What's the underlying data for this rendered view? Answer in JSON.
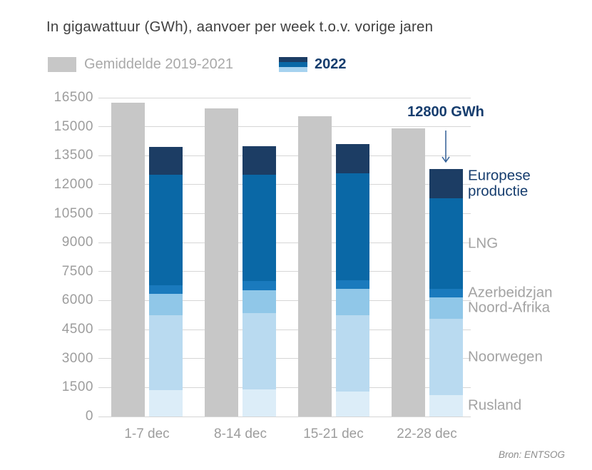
{
  "title": "In gigawattuur (GWh), aanvoer per week t.o.v. vorige jaren",
  "legend": {
    "average_label": "Gemiddelde 2019-2021",
    "year_label": "2022",
    "year_swatch_colors": [
      "#1c3d64",
      "#0a68a6",
      "#a6d2ef"
    ]
  },
  "annotation": {
    "text": "12800 GWh"
  },
  "source": "Bron: ENTSOG",
  "colors": {
    "navy": "#1c3d64",
    "navy_text": "#163d6e",
    "average_gray": "#c7c7c7",
    "grid_gray": "#d6d6d6",
    "axis_text_gray": "#9d9d9d",
    "series_label_gray": "#a3a3a3",
    "title_gray": "#414141",
    "source_gray": "#8c8c8c",
    "arrow_blue": "#315f96"
  },
  "chart_data": {
    "type": "bar",
    "stacked": true,
    "unit": "GWh",
    "title": "In gigawattuur (GWh), aanvoer per week t.o.v. vorige jaren",
    "categories": [
      "1-7 dec",
      "8-14 dec",
      "15-21 dec",
      "22-28 dec"
    ],
    "average_series": {
      "name": "Gemiddelde 2019-2021",
      "values": [
        16250,
        15950,
        15550,
        14900
      ],
      "color": "#c7c7c7"
    },
    "series": [
      {
        "name": "Rusland",
        "values": [
          1350,
          1400,
          1300,
          1100
        ],
        "color": "#dcedf8"
      },
      {
        "name": "Noorwegen",
        "values": [
          3900,
          3950,
          3950,
          3950
        ],
        "color": "#b9daf0"
      },
      {
        "name": "Noord-Afrika",
        "values": [
          1100,
          1200,
          1350,
          1100
        ],
        "color": "#90c7e8"
      },
      {
        "name": "Azerbeidzjan",
        "values": [
          450,
          450,
          450,
          450
        ],
        "color": "#1a7abd"
      },
      {
        "name": "LNG",
        "values": [
          5700,
          5500,
          5550,
          4700
        ],
        "color": "#0a68a6"
      },
      {
        "name": "Europese productie",
        "values": [
          1450,
          1500,
          1500,
          1500
        ],
        "color": "#1c3d64",
        "label_color": "#163d6e"
      }
    ],
    "totals_2022": [
      13950,
      14000,
      14100,
      12800
    ],
    "annotated_value": {
      "category": "22-28 dec",
      "value": 12800,
      "label": "12800 GWh"
    },
    "ylim": [
      0,
      16500
    ],
    "ytick_step": 1500,
    "grid": true,
    "legend_position": "top"
  }
}
